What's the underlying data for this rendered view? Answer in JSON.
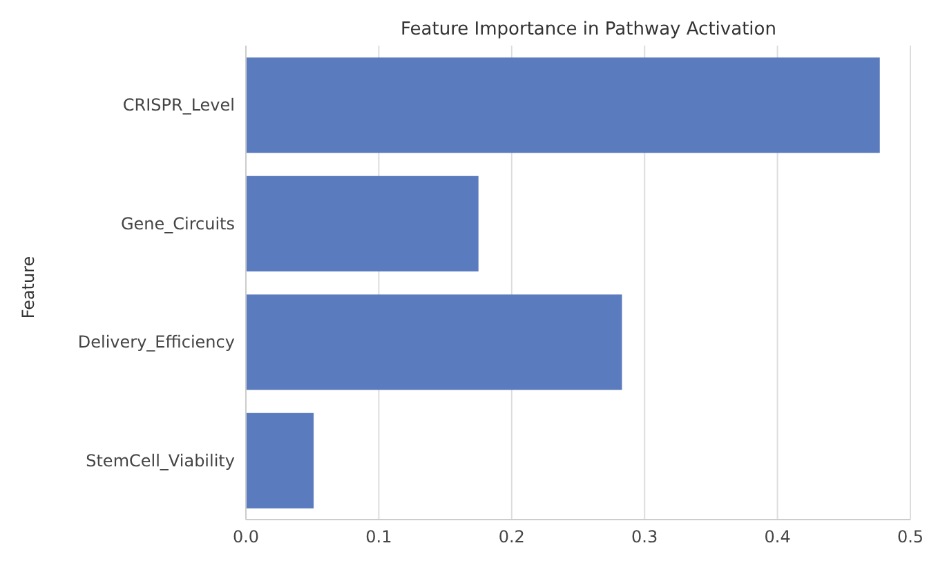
{
  "chart_data": {
    "type": "bar",
    "orientation": "horizontal",
    "title": "Feature Importance in Pathway Activation",
    "ylabel": "Feature",
    "categories": [
      "CRISPR_Level",
      "Gene_Circuits",
      "Delivery_Efficiency",
      "StemCell_Viability"
    ],
    "values": [
      0.477,
      0.175,
      0.283,
      0.051
    ],
    "color": "#5b7bbf",
    "xlim": [
      0,
      0.5
    ],
    "xticks": [
      {
        "value": 0,
        "label": "0.0"
      },
      {
        "value": 0.1,
        "label": "0.1"
      },
      {
        "value": 0.2,
        "label": "0.2"
      },
      {
        "value": 0.3,
        "label": "0.3"
      },
      {
        "value": 0.4,
        "label": "0.4"
      },
      {
        "value": 0.5,
        "label": "0.5"
      }
    ],
    "grid": "x"
  }
}
